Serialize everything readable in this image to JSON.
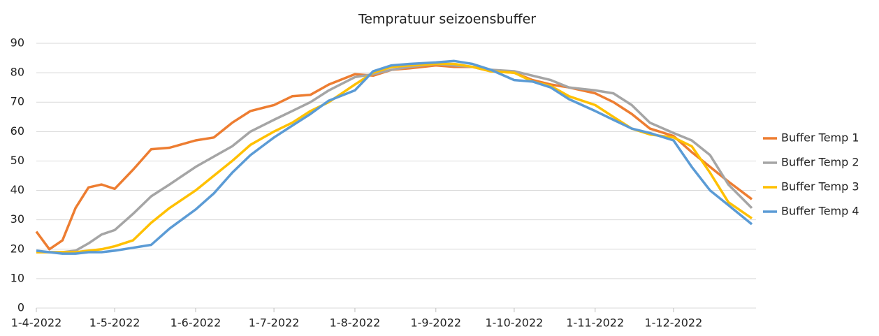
{
  "chart_data": {
    "type": "line",
    "title": "Tempratuur seizoensbuffer",
    "x": [
      "1-4-2022",
      "6-4-2022",
      "11-4-2022",
      "16-4-2022",
      "21-4-2022",
      "26-4-2022",
      "1-5-2022",
      "8-5-2022",
      "15-5-2022",
      "22-5-2022",
      "1-6-2022",
      "8-6-2022",
      "15-6-2022",
      "22-6-2022",
      "1-7-2022",
      "8-7-2022",
      "15-7-2022",
      "22-7-2022",
      "1-8-2022",
      "8-8-2022",
      "15-8-2022",
      "22-8-2022",
      "1-9-2022",
      "8-9-2022",
      "15-9-2022",
      "22-9-2022",
      "1-10-2022",
      "8-10-2022",
      "15-10-2022",
      "22-10-2022",
      "1-11-2022",
      "8-11-2022",
      "15-11-2022",
      "22-11-2022",
      "1-12-2022",
      "8-12-2022",
      "15-12-2022",
      "22-12-2022",
      "31-12-2022"
    ],
    "series": [
      {
        "name": "Buffer Temp 1",
        "color": "#ed7d31",
        "values": [
          26,
          20,
          23,
          34,
          41,
          42,
          40.5,
          47,
          54,
          54.5,
          57,
          58,
          63,
          67,
          69,
          72,
          72.5,
          76,
          79.5,
          79,
          81,
          81.5,
          82.5,
          82,
          82,
          80.5,
          80,
          77.5,
          76,
          75,
          73,
          70,
          66,
          61,
          58.5,
          53,
          48,
          43,
          37
        ]
      },
      {
        "name": "Buffer Temp 2",
        "color": "#a5a5a5",
        "values": [
          19,
          19,
          19,
          19.5,
          22,
          25,
          26.5,
          32,
          38,
          42,
          48,
          51.5,
          55,
          60,
          64,
          67,
          70,
          74,
          78.5,
          79.5,
          81,
          82,
          83,
          82.5,
          82,
          81,
          80.5,
          79,
          77.5,
          75,
          74,
          73,
          69,
          63,
          59.5,
          57,
          52,
          42,
          34
        ]
      },
      {
        "name": "Buffer Temp 3",
        "color": "#ffc000",
        "values": [
          19,
          19,
          19,
          19,
          19.5,
          20,
          21,
          23,
          29,
          34,
          40,
          45,
          50,
          55.5,
          60,
          63,
          67,
          70,
          76,
          80,
          82,
          82.5,
          83,
          83,
          82,
          80.5,
          80,
          77,
          75.5,
          72,
          69,
          65,
          61,
          59,
          58,
          55,
          46,
          36,
          30.5
        ]
      },
      {
        "name": "Buffer Temp 4",
        "color": "#5b9bd5",
        "values": [
          19.5,
          19,
          18.5,
          18.5,
          19,
          19,
          19.5,
          20.5,
          21.5,
          27,
          33.5,
          39,
          46,
          52,
          58,
          62,
          66,
          70.5,
          74,
          80.5,
          82.5,
          83,
          83.5,
          84,
          83,
          81,
          77.5,
          77,
          75,
          71,
          67,
          64,
          61,
          59.5,
          57,
          48,
          40,
          35,
          28.5
        ]
      }
    ],
    "xlim": [
      "1-4-2022",
      "31-12-2022"
    ],
    "xticks": [
      "1-4-2022",
      "1-5-2022",
      "1-6-2022",
      "1-7-2022",
      "1-8-2022",
      "1-9-2022",
      "1-10-2022",
      "1-11-2022",
      "1-12-2022"
    ],
    "ylim": [
      0,
      90
    ],
    "yticks": [
      0,
      10,
      20,
      30,
      40,
      50,
      60,
      70,
      80,
      90
    ],
    "grid": true,
    "legend": "right"
  }
}
